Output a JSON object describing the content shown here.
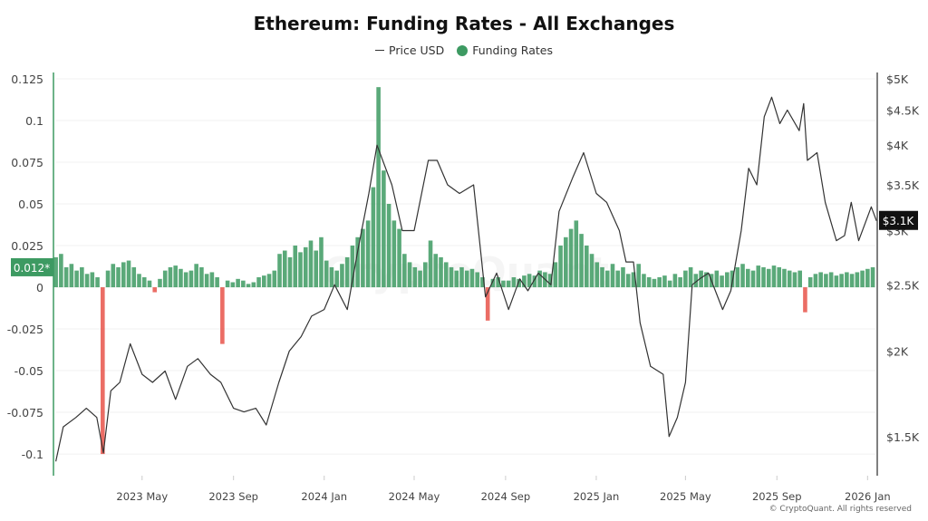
{
  "chart_data": {
    "type": "bar+line",
    "title": "Ethereum: Funding Rates - All Exchanges",
    "legend": [
      {
        "name": "Price USD",
        "marker": "line",
        "color": "#333333"
      },
      {
        "name": "Funding Rates",
        "marker": "dot",
        "color": "#3d9a62"
      }
    ],
    "legend_position": "top-center",
    "watermark": "CryptoQuant",
    "footer": "© CryptoQuant. All rights reserved",
    "grid": true,
    "x_axis": {
      "type": "date",
      "range": [
        "2023-01-03",
        "2026-01-14"
      ],
      "ticks": [
        [
          "2023-05-01",
          "2023 May"
        ],
        [
          "2023-09-01",
          "2023 Sep"
        ],
        [
          "2024-01-01",
          "2024 Jan"
        ],
        [
          "2024-05-01",
          "2024 May"
        ],
        [
          "2024-09-01",
          "2024 Sep"
        ],
        [
          "2025-01-01",
          "2025 Jan"
        ],
        [
          "2025-05-01",
          "2025 May"
        ],
        [
          "2025-09-01",
          "2025 Sep"
        ],
        [
          "2026-01-01",
          "2026 Jan"
        ]
      ]
    },
    "y_left": {
      "label": "",
      "range": [
        -0.113,
        0.1315
      ],
      "ticks": [
        0.125,
        0.1,
        0.075,
        0.05,
        0.025,
        0,
        -0.025,
        -0.05,
        -0.075,
        -0.1
      ],
      "tick_labels": [
        "0.125",
        "0.1",
        "0.075",
        "0.05",
        "0.025",
        "0",
        "-0.025",
        "-0.05",
        "-0.075",
        "-0.1"
      ],
      "current_label": "0.012*",
      "current_value": 0.012,
      "color": "#3d9a62"
    },
    "y_right": {
      "label": "",
      "scale": "log",
      "range": [
        1315,
        5186
      ],
      "ticks": [
        5000,
        4500,
        4000,
        3500,
        3000,
        2500,
        2000,
        1500
      ],
      "tick_labels": [
        "$5K",
        "$4.5K",
        "$4K",
        "$3.5K",
        "$3K",
        "$2.5K",
        "$2K",
        "$1.5K"
      ],
      "current_label": "$3.1K",
      "current_value": 3100
    },
    "colors": {
      "positive": "#3d9a62",
      "negative": "#e8534a",
      "price": "#333333"
    },
    "series": [
      {
        "name": "Funding Rates",
        "axis": "left",
        "type": "bar",
        "dates": [
          "2023-01-05",
          "2023-01-12",
          "2023-01-19",
          "2023-01-26",
          "2023-02-02",
          "2023-02-09",
          "2023-02-16",
          "2023-02-23",
          "2023-03-02",
          "2023-03-09",
          "2023-03-16",
          "2023-03-23",
          "2023-03-30",
          "2023-04-06",
          "2023-04-13",
          "2023-04-20",
          "2023-04-27",
          "2023-05-04",
          "2023-05-11",
          "2023-05-18",
          "2023-05-25",
          "2023-06-01",
          "2023-06-08",
          "2023-06-15",
          "2023-06-22",
          "2023-06-29",
          "2023-07-06",
          "2023-07-13",
          "2023-07-20",
          "2023-07-27",
          "2023-08-03",
          "2023-08-10",
          "2023-08-17",
          "2023-08-24",
          "2023-08-31",
          "2023-09-07",
          "2023-09-14",
          "2023-09-21",
          "2023-09-28",
          "2023-10-05",
          "2023-10-12",
          "2023-10-19",
          "2023-10-26",
          "2023-11-02",
          "2023-11-09",
          "2023-11-16",
          "2023-11-23",
          "2023-11-30",
          "2023-12-07",
          "2023-12-14",
          "2023-12-21",
          "2023-12-28",
          "2024-01-04",
          "2024-01-11",
          "2024-01-18",
          "2024-01-25",
          "2024-02-01",
          "2024-02-08",
          "2024-02-15",
          "2024-02-22",
          "2024-02-29",
          "2024-03-07",
          "2024-03-14",
          "2024-03-21",
          "2024-03-28",
          "2024-04-04",
          "2024-04-11",
          "2024-04-18",
          "2024-04-25",
          "2024-05-02",
          "2024-05-09",
          "2024-05-16",
          "2024-05-23",
          "2024-05-30",
          "2024-06-06",
          "2024-06-13",
          "2024-06-20",
          "2024-06-27",
          "2024-07-04",
          "2024-07-11",
          "2024-07-18",
          "2024-07-25",
          "2024-08-01",
          "2024-08-08",
          "2024-08-15",
          "2024-08-22",
          "2024-08-29",
          "2024-09-05",
          "2024-09-12",
          "2024-09-19",
          "2024-09-26",
          "2024-10-03",
          "2024-10-10",
          "2024-10-17",
          "2024-10-24",
          "2024-10-31",
          "2024-11-07",
          "2024-11-14",
          "2024-11-21",
          "2024-11-28",
          "2024-12-05",
          "2024-12-12",
          "2024-12-19",
          "2024-12-26",
          "2025-01-02",
          "2025-01-09",
          "2025-01-16",
          "2025-01-23",
          "2025-01-30",
          "2025-02-06",
          "2025-02-13",
          "2025-02-20",
          "2025-02-27",
          "2025-03-06",
          "2025-03-13",
          "2025-03-20",
          "2025-03-27",
          "2025-04-03",
          "2025-04-10",
          "2025-04-17",
          "2025-04-24",
          "2025-05-01",
          "2025-05-08",
          "2025-05-15",
          "2025-05-22",
          "2025-05-29",
          "2025-06-05",
          "2025-06-12",
          "2025-06-19",
          "2025-06-26",
          "2025-07-03",
          "2025-07-10",
          "2025-07-17",
          "2025-07-24",
          "2025-07-31",
          "2025-08-07",
          "2025-08-14",
          "2025-08-21",
          "2025-08-28",
          "2025-09-04",
          "2025-09-11",
          "2025-09-18",
          "2025-09-25",
          "2025-10-02",
          "2025-10-09",
          "2025-10-16",
          "2025-10-23",
          "2025-10-30",
          "2025-11-06",
          "2025-11-13",
          "2025-11-20",
          "2025-11-27",
          "2025-12-04",
          "2025-12-11",
          "2025-12-18",
          "2025-12-25",
          "2026-01-01",
          "2026-01-08"
        ],
        "values": [
          0.018,
          0.02,
          0.012,
          0.014,
          0.01,
          0.012,
          0.008,
          0.009,
          0.006,
          -0.1,
          0.01,
          0.014,
          0.012,
          0.015,
          0.016,
          0.012,
          0.008,
          0.006,
          0.004,
          -0.003,
          0.005,
          0.01,
          0.012,
          0.013,
          0.011,
          0.009,
          0.01,
          0.014,
          0.012,
          0.008,
          0.009,
          0.006,
          -0.034,
          0.004,
          0.003,
          0.005,
          0.004,
          0.002,
          0.003,
          0.006,
          0.007,
          0.008,
          0.01,
          0.02,
          0.022,
          0.018,
          0.025,
          0.021,
          0.024,
          0.028,
          0.022,
          0.03,
          0.016,
          0.012,
          0.01,
          0.014,
          0.018,
          0.025,
          0.03,
          0.035,
          0.04,
          0.06,
          0.12,
          0.07,
          0.05,
          0.04,
          0.035,
          0.02,
          0.015,
          0.012,
          0.01,
          0.015,
          0.028,
          0.02,
          0.018,
          0.015,
          0.012,
          0.01,
          0.012,
          0.01,
          0.011,
          0.009,
          0.006,
          -0.02,
          0.005,
          0.006,
          0.004,
          0.004,
          0.006,
          0.005,
          0.007,
          0.008,
          0.007,
          0.01,
          0.009,
          0.008,
          0.015,
          0.025,
          0.03,
          0.035,
          0.04,
          0.032,
          0.025,
          0.02,
          0.015,
          0.012,
          0.01,
          0.014,
          0.01,
          0.012,
          0.008,
          0.009,
          0.014,
          0.008,
          0.006,
          0.005,
          0.006,
          0.007,
          0.004,
          0.008,
          0.006,
          0.01,
          0.012,
          0.008,
          0.01,
          0.009,
          0.008,
          0.01,
          0.007,
          0.009,
          0.01,
          0.012,
          0.014,
          0.011,
          0.01,
          0.013,
          0.012,
          0.011,
          0.013,
          0.012,
          0.011,
          0.01,
          0.009,
          0.01,
          -0.015,
          0.006,
          0.008,
          0.009,
          0.008,
          0.009,
          0.007,
          0.008,
          0.009,
          0.008,
          0.009,
          0.01,
          0.011,
          0.012
        ]
      },
      {
        "name": "Price USD",
        "axis": "right",
        "type": "line",
        "dates": [
          "2023-01-05",
          "2023-01-15",
          "2023-02-01",
          "2023-02-15",
          "2023-03-01",
          "2023-03-10",
          "2023-03-20",
          "2023-04-01",
          "2023-04-15",
          "2023-05-01",
          "2023-05-15",
          "2023-06-01",
          "2023-06-15",
          "2023-07-01",
          "2023-07-15",
          "2023-08-01",
          "2023-08-15",
          "2023-09-01",
          "2023-09-15",
          "2023-10-01",
          "2023-10-15",
          "2023-11-01",
          "2023-11-15",
          "2023-12-01",
          "2023-12-15",
          "2024-01-01",
          "2024-01-15",
          "2024-02-01",
          "2024-02-15",
          "2024-03-01",
          "2024-03-12",
          "2024-04-01",
          "2024-04-15",
          "2024-05-01",
          "2024-05-20",
          "2024-06-01",
          "2024-06-15",
          "2024-07-01",
          "2024-07-20",
          "2024-08-05",
          "2024-08-20",
          "2024-09-05",
          "2024-09-20",
          "2024-10-01",
          "2024-10-15",
          "2024-11-01",
          "2024-11-12",
          "2024-12-01",
          "2024-12-15",
          "2025-01-01",
          "2025-01-15",
          "2025-02-01",
          "2025-02-10",
          "2025-02-20",
          "2025-03-01",
          "2025-03-15",
          "2025-04-01",
          "2025-04-09",
          "2025-04-20",
          "2025-05-01",
          "2025-05-10",
          "2025-05-20",
          "2025-06-01",
          "2025-06-20",
          "2025-07-01",
          "2025-07-15",
          "2025-07-25",
          "2025-08-05",
          "2025-08-15",
          "2025-08-25",
          "2025-09-05",
          "2025-09-15",
          "2025-10-01",
          "2025-10-07",
          "2025-10-12",
          "2025-10-25",
          "2025-11-05",
          "2025-11-20",
          "2025-12-01",
          "2025-12-10",
          "2025-12-20",
          "2026-01-06",
          "2026-01-13"
        ],
        "values": [
          1380,
          1550,
          1600,
          1650,
          1600,
          1420,
          1750,
          1800,
          2050,
          1850,
          1800,
          1870,
          1700,
          1900,
          1950,
          1850,
          1800,
          1650,
          1630,
          1650,
          1560,
          1800,
          2000,
          2100,
          2250,
          2300,
          2500,
          2300,
          2800,
          3400,
          4000,
          3500,
          3000,
          3000,
          3800,
          3800,
          3500,
          3400,
          3500,
          2400,
          2600,
          2300,
          2550,
          2450,
          2600,
          2500,
          3200,
          3600,
          3900,
          3400,
          3300,
          3000,
          2700,
          2700,
          2200,
          1900,
          1850,
          1500,
          1600,
          1800,
          2500,
          2550,
          2600,
          2300,
          2450,
          3000,
          3700,
          3500,
          4400,
          4700,
          4300,
          4500,
          4200,
          4600,
          3800,
          3900,
          3300,
          2900,
          2950,
          3300,
          2900,
          3250,
          3100
        ]
      }
    ]
  }
}
